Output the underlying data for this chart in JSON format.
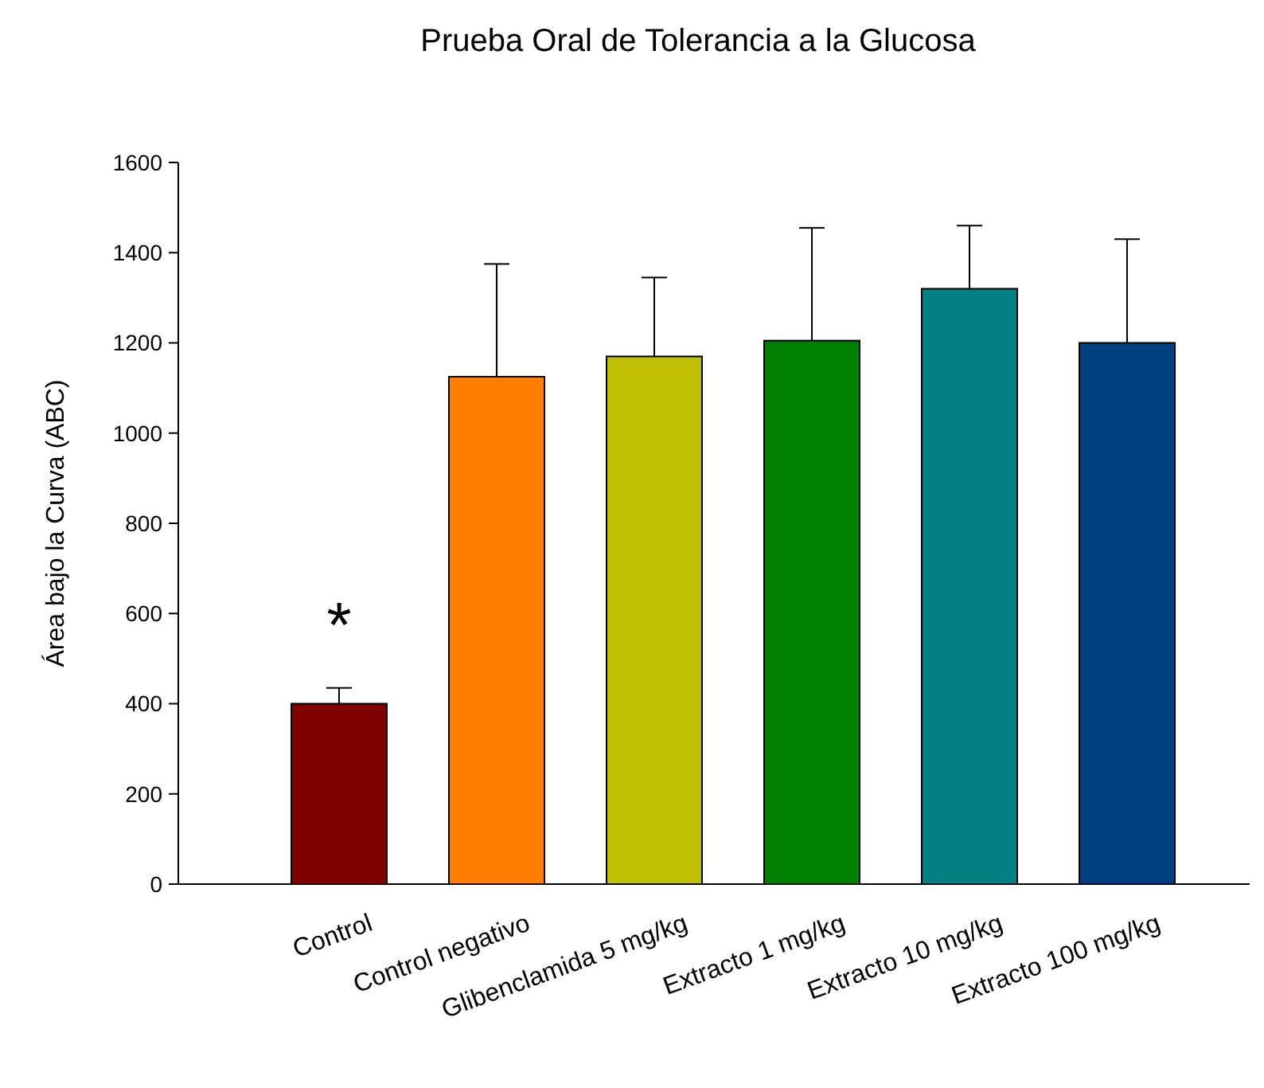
{
  "chart_data": {
    "type": "bar",
    "title": "Prueba Oral de Tolerancia a la Glucosa",
    "ylabel": "Área bajo la Curva (ABC)",
    "categories": [
      "Control",
      "Control negativo",
      "Glibenclamida 5 mg/kg",
      "Extracto 1 mg/kg",
      "Extracto 10 mg/kg",
      "Extracto 100 mg/kg"
    ],
    "values": [
      400,
      1125,
      1170,
      1205,
      1320,
      1200
    ],
    "colors": [
      "#800000",
      "#ff8000",
      "#c0c000",
      "#008000",
      "#008080",
      "#004080"
    ],
    "errors": [
      [
        400,
        435
      ],
      [
        1125,
        1375
      ],
      [
        1170,
        1345
      ],
      [
        1205,
        1455
      ],
      [
        1320,
        1460
      ],
      [
        1200,
        1430
      ]
    ],
    "ylim": [
      0,
      1600
    ],
    "yticks": [
      0,
      200,
      400,
      600,
      800,
      1000,
      1200,
      1400,
      1600
    ],
    "annotations": [
      "*"
    ]
  }
}
